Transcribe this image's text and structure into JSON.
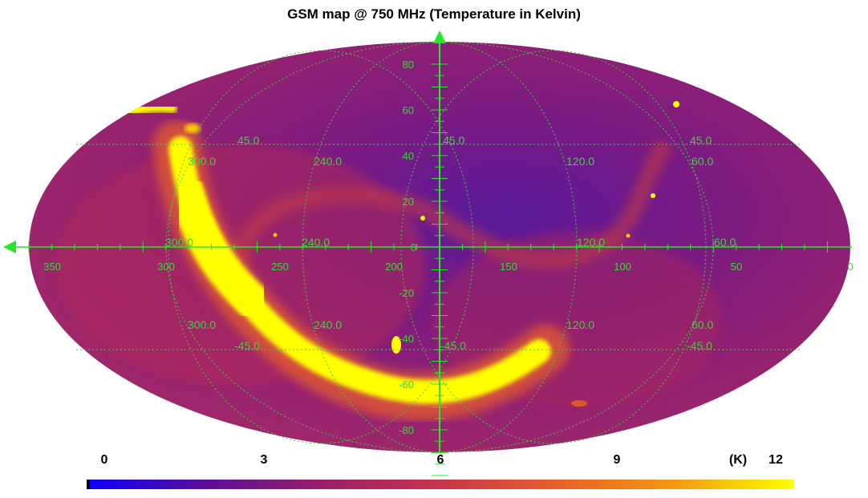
{
  "title": "GSM map @ 750 MHz (Temperature in Kelvin)",
  "colors": {
    "background": "#ffffff",
    "grid": "#3cd23c",
    "axis": "#28e628",
    "colormap": [
      "#0b00ff",
      "#5c0d9a",
      "#9a1e6a",
      "#c8354a",
      "#e8602a",
      "#f59a10",
      "#ffff00"
    ]
  },
  "map": {
    "longitude_ticks": [
      "350",
      "300",
      "250",
      "200",
      "150",
      "100",
      "50",
      "0"
    ],
    "latitude_ticks": [
      "80",
      "60",
      "40",
      "20",
      "0",
      "-20",
      "-40",
      "-60",
      "-80"
    ],
    "grid_labels_upper": [
      "45.0",
      "300.0",
      "240.0",
      "45.0",
      "120.0",
      "45.0",
      "60.0"
    ],
    "grid_labels_equator": [
      "300.0",
      "240.0",
      "120.0",
      "60.0"
    ],
    "grid_labels_lower": [
      "300.0",
      "240.0",
      "120.0",
      "60.0",
      "-45.0",
      "-45.0",
      "-45.0"
    ]
  },
  "colorbar": {
    "unit": "(K)",
    "ticks": [
      "0",
      "3",
      "6",
      "9",
      "12"
    ],
    "min": 0,
    "max": 12
  }
}
